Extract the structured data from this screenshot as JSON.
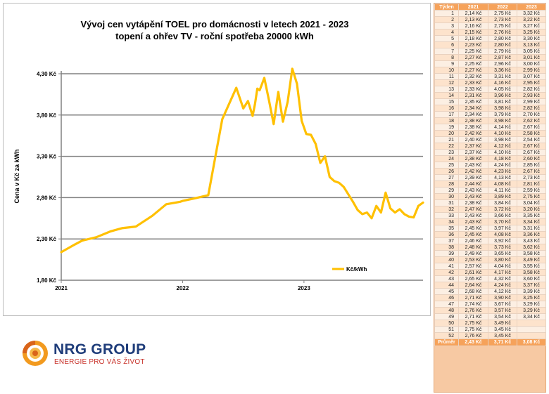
{
  "chart_data": {
    "type": "line",
    "title_line1": "Vývoj cen vytápění TOEL pro domácnosti v letech 2021 - 2023",
    "title_line2": "topení a ohřev TV - roční spotřeba 20000 kWh",
    "ylabel": "Cena v Kč za kWh",
    "xlabel": "",
    "ylim": [
      1.8,
      4.3
    ],
    "y_ticks": [
      "1,80 Kč",
      "2,30 Kč",
      "2,80 Kč",
      "3,30 Kč",
      "3,80 Kč",
      "4,30 Kč"
    ],
    "x_ticks": [
      "2021",
      "2022",
      "2023"
    ],
    "grid": true,
    "legend_position": "bottom-right",
    "series": [
      {
        "name": "Kč/kWh",
        "color": "#ffc000",
        "x_weeks": [
          1,
          6,
          10,
          16,
          22,
          27,
          33,
          40,
          46,
          52,
          53,
          58,
          64,
          70,
          76,
          79,
          81,
          83,
          84,
          85,
          86,
          88,
          90,
          92,
          94,
          96,
          98,
          100,
          102,
          104,
          106,
          108,
          110,
          112,
          114,
          116,
          118,
          120,
          122,
          124,
          126,
          128,
          130,
          132,
          134,
          136,
          138,
          140,
          142,
          144,
          146,
          148,
          150,
          152,
          154,
          156
        ],
        "values": [
          2.14,
          2.22,
          2.28,
          2.32,
          2.39,
          2.43,
          2.45,
          2.58,
          2.72,
          2.75,
          2.76,
          2.79,
          2.83,
          3.75,
          4.13,
          3.88,
          3.97,
          3.79,
          3.93,
          4.12,
          4.1,
          4.25,
          3.98,
          3.69,
          4.08,
          3.72,
          3.96,
          4.36,
          4.18,
          3.73,
          3.57,
          3.56,
          3.45,
          3.22,
          3.3,
          3.05,
          3.0,
          2.98,
          2.93,
          2.84,
          2.75,
          2.65,
          2.6,
          2.62,
          2.55,
          2.7,
          2.62,
          2.86,
          2.67,
          2.62,
          2.66,
          2.6,
          2.57,
          2.56,
          2.7,
          2.74
        ]
      }
    ]
  },
  "table": {
    "headers": [
      "Týden",
      "2021",
      "2022",
      "2023"
    ],
    "rows": [
      [
        "1",
        "2,14 Kč",
        "2,75 Kč",
        "3,32 Kč"
      ],
      [
        "2",
        "2,13 Kč",
        "2,73 Kč",
        "3,22 Kč"
      ],
      [
        "3",
        "2,16 Kč",
        "2,75 Kč",
        "3,27 Kč"
      ],
      [
        "4",
        "2,15 Kč",
        "2,76 Kč",
        "3,25 Kč"
      ],
      [
        "5",
        "2,18 Kč",
        "2,80 Kč",
        "3,30 Kč"
      ],
      [
        "6",
        "2,23 Kč",
        "2,80 Kč",
        "3,13 Kč"
      ],
      [
        "7",
        "2,25 Kč",
        "2,79 Kč",
        "3,05 Kč"
      ],
      [
        "8",
        "2,27 Kč",
        "2,87 Kč",
        "3,01 Kč"
      ],
      [
        "9",
        "2,25 Kč",
        "2,96 Kč",
        "3,00 Kč"
      ],
      [
        "10",
        "2,27 Kč",
        "3,36 Kč",
        "2,99 Kč"
      ],
      [
        "11",
        "2,32 Kč",
        "3,31 Kč",
        "3,07 Kč"
      ],
      [
        "12",
        "2,33 Kč",
        "4,16 Kč",
        "2,95 Kč"
      ],
      [
        "13",
        "2,33 Kč",
        "4,05 Kč",
        "2,82 Kč"
      ],
      [
        "14",
        "2,31 Kč",
        "3,96 Kč",
        "2,93 Kč"
      ],
      [
        "15",
        "2,35 Kč",
        "3,81 Kč",
        "2,99 Kč"
      ],
      [
        "16",
        "2,34 Kč",
        "3,98 Kč",
        "2,82 Kč"
      ],
      [
        "17",
        "2,34 Kč",
        "3,79 Kč",
        "2,70 Kč"
      ],
      [
        "18",
        "2,38 Kč",
        "3,98 Kč",
        "2,62 Kč"
      ],
      [
        "19",
        "2,38 Kč",
        "4,14 Kč",
        "2,67 Kč"
      ],
      [
        "20",
        "2,42 Kč",
        "4,10 Kč",
        "2,58 Kč"
      ],
      [
        "21",
        "2,40 Kč",
        "3,98 Kč",
        "2,54 Kč"
      ],
      [
        "22",
        "2,37 Kč",
        "4,12 Kč",
        "2,67 Kč"
      ],
      [
        "23",
        "2,37 Kč",
        "4,10 Kč",
        "2,67 Kč"
      ],
      [
        "24",
        "2,38 Kč",
        "4,18 Kč",
        "2,60 Kč"
      ],
      [
        "25",
        "2,43 Kč",
        "4,24 Kč",
        "2,85 Kč"
      ],
      [
        "26",
        "2,42 Kč",
        "4,23 Kč",
        "2,67 Kč"
      ],
      [
        "27",
        "2,39 Kč",
        "4,13 Kč",
        "2,73 Kč"
      ],
      [
        "28",
        "2,44 Kč",
        "4,08 Kč",
        "2,81 Kč"
      ],
      [
        "29",
        "2,43 Kč",
        "4,11 Kč",
        "2,59 Kč"
      ],
      [
        "30",
        "2,43 Kč",
        "3,89 Kč",
        "2,75 Kč"
      ],
      [
        "31",
        "2,38 Kč",
        "3,84 Kč",
        "3,04 Kč"
      ],
      [
        "32",
        "2,47 Kč",
        "3,72 Kč",
        "3,20 Kč"
      ],
      [
        "33",
        "2,43 Kč",
        "3,66 Kč",
        "3,35 Kč"
      ],
      [
        "34",
        "2,43 Kč",
        "3,70 Kč",
        "3,34 Kč"
      ],
      [
        "35",
        "2,45 Kč",
        "3,97 Kč",
        "3,31 Kč"
      ],
      [
        "36",
        "2,45 Kč",
        "4,08 Kč",
        "3,36 Kč"
      ],
      [
        "37",
        "2,46 Kč",
        "3,92 Kč",
        "3,43 Kč"
      ],
      [
        "38",
        "2,48 Kč",
        "3,73 Kč",
        "3,62 Kč"
      ],
      [
        "39",
        "2,49 Kč",
        "3,65 Kč",
        "3,58 Kč"
      ],
      [
        "40",
        "2,53 Kč",
        "3,80 Kč",
        "3,49 Kč"
      ],
      [
        "41",
        "2,57 Kč",
        "4,04 Kč",
        "3,55 Kč"
      ],
      [
        "42",
        "2,61 Kč",
        "4,17 Kč",
        "3,58 Kč"
      ],
      [
        "43",
        "2,65 Kč",
        "4,32 Kč",
        "3,60 Kč"
      ],
      [
        "44",
        "2,64 Kč",
        "4,24 Kč",
        "3,37 Kč"
      ],
      [
        "45",
        "2,68 Kč",
        "4,12 Kč",
        "3,39 Kč"
      ],
      [
        "46",
        "2,71 Kč",
        "3,90 Kč",
        "3,25 Kč"
      ],
      [
        "47",
        "2,74 Kč",
        "3,67 Kč",
        "3,29 Kč"
      ],
      [
        "48",
        "2,76 Kč",
        "3,57 Kč",
        "3,29 Kč"
      ],
      [
        "49",
        "2,71 Kč",
        "3,54 Kč",
        "3,34 Kč"
      ],
      [
        "50",
        "2,75 Kč",
        "3,49 Kč",
        ""
      ],
      [
        "51",
        "2,75 Kč",
        "3,45 Kč",
        ""
      ],
      [
        "52",
        "2,76 Kč",
        "3,45 Kč",
        ""
      ]
    ],
    "footer": [
      "Průměr",
      "2,43 Kč",
      "3,71 Kč",
      "3,08 Kč"
    ]
  },
  "logo": {
    "name": "NRG GROUP",
    "tagline": "ENERGIE PRO VÁS ŽIVOT"
  },
  "colors": {
    "line": "#ffc000",
    "grid": "#808080",
    "table_header": "#f6a25a",
    "logo_orange": "#f29a1f",
    "logo_blue": "#1f3d7a"
  }
}
